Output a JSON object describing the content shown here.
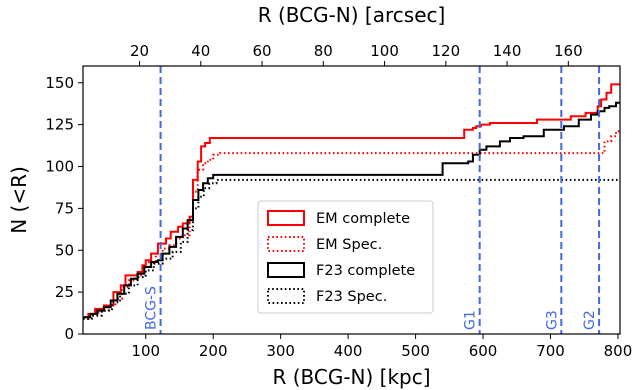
{
  "chart_data": {
    "type": "line",
    "step": true,
    "xlabel_bottom": "R (BCG-N) [kpc]",
    "xlabel_top": "R (BCG-N) [arcsec]",
    "ylabel": "N (<R)",
    "xlim": [
      7,
      803
    ],
    "ylim": [
      0,
      160
    ],
    "top_axis_kpc_per_arcsec": 4.54,
    "x_ticks": [
      100,
      200,
      300,
      400,
      500,
      600,
      700,
      800
    ],
    "y_ticks": [
      0,
      25,
      50,
      75,
      100,
      125,
      150
    ],
    "top_ticks": [
      20,
      40,
      60,
      80,
      100,
      120,
      140,
      160
    ],
    "grid": false,
    "legend": {
      "placement": "lower-center"
    },
    "series": [
      {
        "name": "EM complete",
        "color": "#ff0000",
        "linestyle": "solid",
        "points": [
          [
            7,
            10
          ],
          [
            15,
            12
          ],
          [
            25,
            15
          ],
          [
            38,
            17
          ],
          [
            52,
            25
          ],
          [
            63,
            29
          ],
          [
            70,
            35
          ],
          [
            88,
            37
          ],
          [
            95,
            41
          ],
          [
            100,
            44
          ],
          [
            108,
            48
          ],
          [
            118,
            54
          ],
          [
            130,
            57
          ],
          [
            137,
            61
          ],
          [
            148,
            64
          ],
          [
            155,
            66
          ],
          [
            165,
            70
          ],
          [
            170,
            92
          ],
          [
            177,
            103
          ],
          [
            182,
            112
          ],
          [
            188,
            114
          ],
          [
            195,
            117
          ],
          [
            565,
            117
          ],
          [
            572,
            122
          ],
          [
            585,
            123
          ],
          [
            590,
            124
          ],
          [
            597,
            125
          ],
          [
            610,
            126
          ],
          [
            680,
            128
          ],
          [
            730,
            130
          ],
          [
            752,
            132
          ],
          [
            770,
            136
          ],
          [
            775,
            140
          ],
          [
            783,
            144
          ],
          [
            790,
            149
          ],
          [
            803,
            149
          ]
        ]
      },
      {
        "name": "EM Spec.",
        "color": "#ff0000",
        "linestyle": "dotted",
        "points": [
          [
            7,
            9
          ],
          [
            15,
            11
          ],
          [
            30,
            14
          ],
          [
            45,
            17
          ],
          [
            55,
            21
          ],
          [
            65,
            28
          ],
          [
            75,
            32
          ],
          [
            85,
            35
          ],
          [
            95,
            40
          ],
          [
            105,
            43
          ],
          [
            115,
            48
          ],
          [
            125,
            51
          ],
          [
            135,
            53
          ],
          [
            145,
            57
          ],
          [
            155,
            59
          ],
          [
            165,
            68
          ],
          [
            170,
            85
          ],
          [
            177,
            98
          ],
          [
            185,
            102
          ],
          [
            192,
            104
          ],
          [
            200,
            107
          ],
          [
            210,
            108
          ],
          [
            765,
            108
          ],
          [
            780,
            115
          ],
          [
            790,
            118
          ],
          [
            797,
            121
          ],
          [
            803,
            121
          ]
        ]
      },
      {
        "name": "F23 complete",
        "color": "#000000",
        "linestyle": "solid",
        "points": [
          [
            7,
            10
          ],
          [
            18,
            12
          ],
          [
            28,
            14
          ],
          [
            38,
            16
          ],
          [
            48,
            20
          ],
          [
            58,
            24
          ],
          [
            68,
            29
          ],
          [
            78,
            33
          ],
          [
            88,
            36
          ],
          [
            98,
            40
          ],
          [
            108,
            43
          ],
          [
            118,
            44
          ],
          [
            125,
            48
          ],
          [
            135,
            52
          ],
          [
            145,
            58
          ],
          [
            155,
            63
          ],
          [
            162,
            68
          ],
          [
            170,
            80
          ],
          [
            178,
            86
          ],
          [
            185,
            90
          ],
          [
            192,
            93
          ],
          [
            200,
            95
          ],
          [
            535,
            95
          ],
          [
            540,
            102
          ],
          [
            578,
            103
          ],
          [
            585,
            107
          ],
          [
            595,
            110
          ],
          [
            605,
            112
          ],
          [
            625,
            115
          ],
          [
            640,
            117
          ],
          [
            660,
            118
          ],
          [
            690,
            122
          ],
          [
            720,
            124
          ],
          [
            742,
            128
          ],
          [
            760,
            131
          ],
          [
            770,
            133
          ],
          [
            780,
            135
          ],
          [
            787,
            136
          ],
          [
            797,
            138
          ],
          [
            803,
            138
          ]
        ]
      },
      {
        "name": "F23 Spec.",
        "color": "#000000",
        "linestyle": "dotted",
        "points": [
          [
            7,
            9
          ],
          [
            20,
            11
          ],
          [
            35,
            14
          ],
          [
            50,
            19
          ],
          [
            62,
            24
          ],
          [
            75,
            29
          ],
          [
            88,
            34
          ],
          [
            100,
            38
          ],
          [
            112,
            42
          ],
          [
            125,
            45
          ],
          [
            140,
            49
          ],
          [
            152,
            55
          ],
          [
            162,
            62
          ],
          [
            170,
            75
          ],
          [
            178,
            82
          ],
          [
            186,
            87
          ],
          [
            194,
            90
          ],
          [
            205,
            92
          ],
          [
            803,
            92
          ]
        ]
      }
    ],
    "vertical_lines": [
      {
        "label": "BCG-S",
        "x": 122
      },
      {
        "label": "G1",
        "x": 595
      },
      {
        "label": "G3",
        "x": 716
      },
      {
        "label": "G2",
        "x": 772
      }
    ],
    "vline_color": "#4169e1"
  }
}
